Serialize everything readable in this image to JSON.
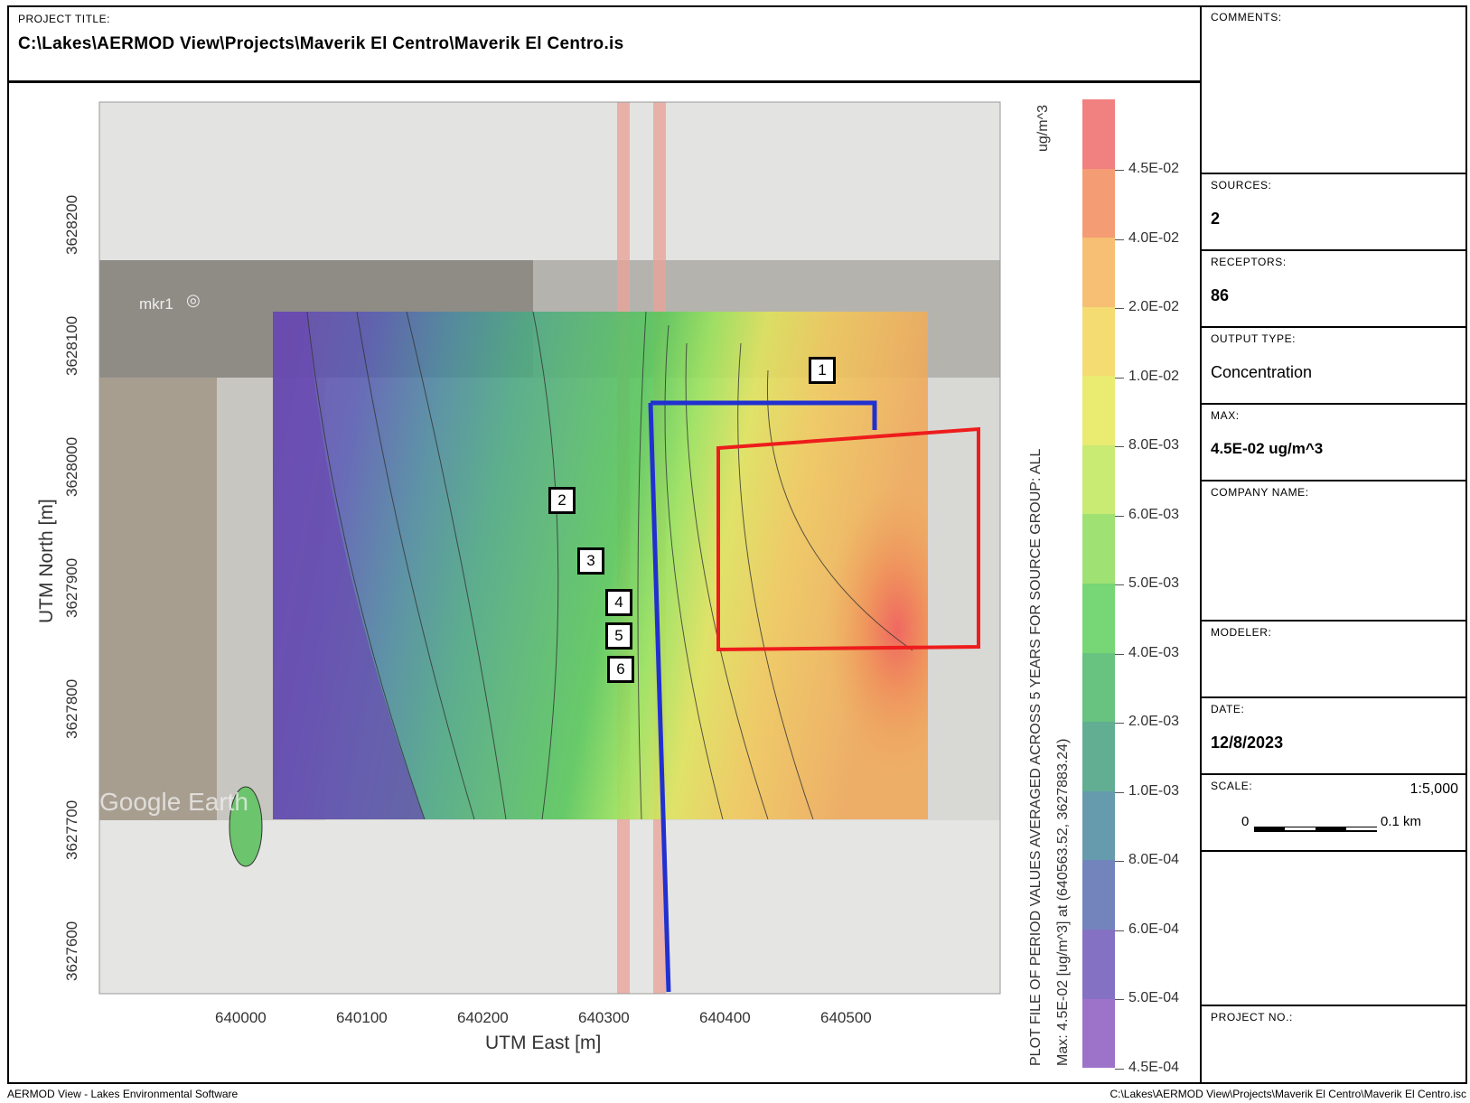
{
  "title_block": {
    "label": "PROJECT TITLE:",
    "value": "C:\\Lakes\\AERMOD View\\Projects\\Maverik El Centro\\Maverik El Centro.is"
  },
  "side_panel": {
    "comments_label": "COMMENTS:",
    "sources_label": "SOURCES:",
    "sources_value": "2",
    "receptors_label": "RECEPTORS:",
    "receptors_value": "86",
    "output_type_label": "OUTPUT TYPE:",
    "output_type_value": "Concentration",
    "max_label": "MAX:",
    "max_value": "4.5E-02 ug/m^3",
    "company_label": "COMPANY NAME:",
    "modeler_label": "MODELER:",
    "date_label": "DATE:",
    "date_value": "12/8/2023",
    "scale_label": "SCALE:",
    "scale_value": "1:5,000",
    "scalebar_start": "0",
    "scalebar_end": "0.1 km",
    "project_no_label": "PROJECT NO.:"
  },
  "plot": {
    "x_axis_label": "UTM East [m]",
    "y_axis_label": "UTM North [m]",
    "x_ticks": [
      "640000",
      "640100",
      "640200",
      "640300",
      "640400",
      "640500"
    ],
    "y_ticks": [
      "3628200",
      "3628100",
      "3628000",
      "3627900",
      "3627800",
      "3627700",
      "3627600"
    ],
    "marker_label": "mkr1",
    "watermark": "Google Earth",
    "receptor_labels": [
      "1",
      "2",
      "3",
      "4",
      "5",
      "6"
    ]
  },
  "colorbar": {
    "unit": "ug/m^3",
    "labels": [
      "4.5E-02",
      "4.0E-02",
      "2.0E-02",
      "1.0E-02",
      "8.0E-03",
      "6.0E-03",
      "5.0E-03",
      "4.0E-03",
      "2.0E-03",
      "1.0E-03",
      "8.0E-04",
      "6.0E-04",
      "5.0E-04",
      "4.5E-04"
    ],
    "colors": [
      "#ef6a6a",
      "#f28b5c",
      "#f5b45a",
      "#f2d65a",
      "#e6e858",
      "#bfe65a",
      "#8fdc5a",
      "#5fcf5e",
      "#4db86a",
      "#46a080",
      "#4a8a9e",
      "#5a6eb0",
      "#7058b8",
      "#8c5ac0"
    ]
  },
  "vertical_caption": {
    "line1": "PLOT FILE OF PERIOD VALUES AVERAGED ACROSS 5 YEARS FOR SOURCE GROUP: ALL",
    "line2": "Max:  4.5E-02  [ug/m^3]  at  (640563.52, 3627883.24)"
  },
  "footer": {
    "left": "AERMOD View - Lakes Environmental Software",
    "right": "C:\\Lakes\\AERMOD View\\Projects\\Maverik El Centro\\Maverik El Centro.isc"
  }
}
